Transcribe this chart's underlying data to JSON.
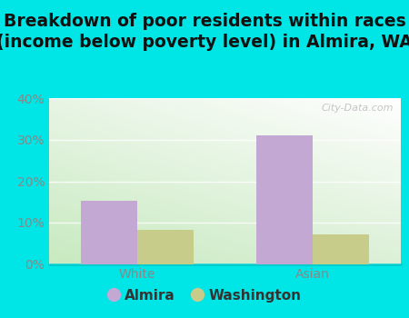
{
  "title": "Breakdown of poor residents within races\n(income below poverty level) in Almira, WA",
  "categories": [
    "White",
    "Asian"
  ],
  "almira_values": [
    15.3,
    31.1
  ],
  "washington_values": [
    8.3,
    7.2
  ],
  "almira_color": "#c4a8d4",
  "washington_color": "#c8cc8a",
  "ylim": [
    0,
    40
  ],
  "yticks": [
    0,
    10,
    20,
    30,
    40
  ],
  "ytick_labels": [
    "0%",
    "10%",
    "20%",
    "30%",
    "40%"
  ],
  "bar_width": 0.32,
  "title_fontsize": 13.5,
  "tick_fontsize": 10,
  "legend_fontsize": 11,
  "outer_bg_color": "#00e5e5",
  "inner_bg_color_topleft": "#e8f5e5",
  "inner_bg_color_topright": "#ffffff",
  "inner_bg_color_bottomleft": "#c8eac0",
  "watermark": "City-Data.com",
  "legend_labels": [
    "Almira",
    "Washington"
  ]
}
